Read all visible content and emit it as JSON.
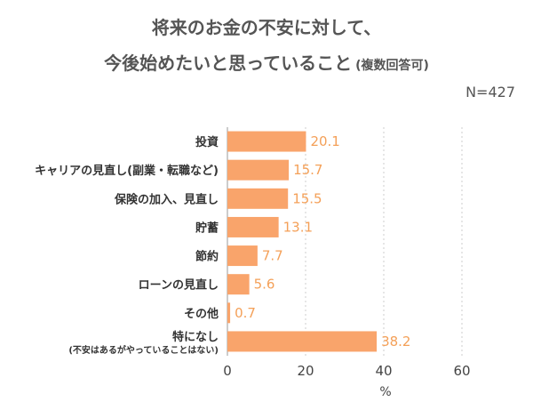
{
  "chart_data": {
    "type": "bar",
    "orientation": "horizontal",
    "title": {
      "line1": "将来のお金の不安に対して、",
      "line2": "今後始めたいと思っていること",
      "line2_suffix": "(複数回答可)"
    },
    "sample_size": "N=427",
    "categories": [
      {
        "label": "投資"
      },
      {
        "label": "キャリアの見直し(副業・転職など)"
      },
      {
        "label": "保険の加入、見直し"
      },
      {
        "label": "貯蓄"
      },
      {
        "label": "節約"
      },
      {
        "label": "ローンの見直し"
      },
      {
        "label": "その他"
      },
      {
        "label": "特になし",
        "sub": "(不安はあるがやっていることはない)"
      }
    ],
    "values": [
      20.1,
      15.7,
      15.5,
      13.1,
      7.7,
      5.6,
      0.7,
      38.2
    ],
    "value_labels": [
      "20.1",
      "15.7",
      "15.5",
      "13.1",
      "7.7",
      "5.6",
      "0.7",
      "38.2"
    ],
    "xlim": [
      0,
      60
    ],
    "x_ticks": [
      "0",
      "20",
      "40",
      "60"
    ],
    "x_tick_values": [
      0,
      20,
      40,
      60
    ],
    "xlabel": "%",
    "grid": true,
    "colors": {
      "bar": "#f9a46b",
      "value_text": "#f4a058",
      "grid": "#cccccc",
      "axis": "#999999"
    }
  }
}
